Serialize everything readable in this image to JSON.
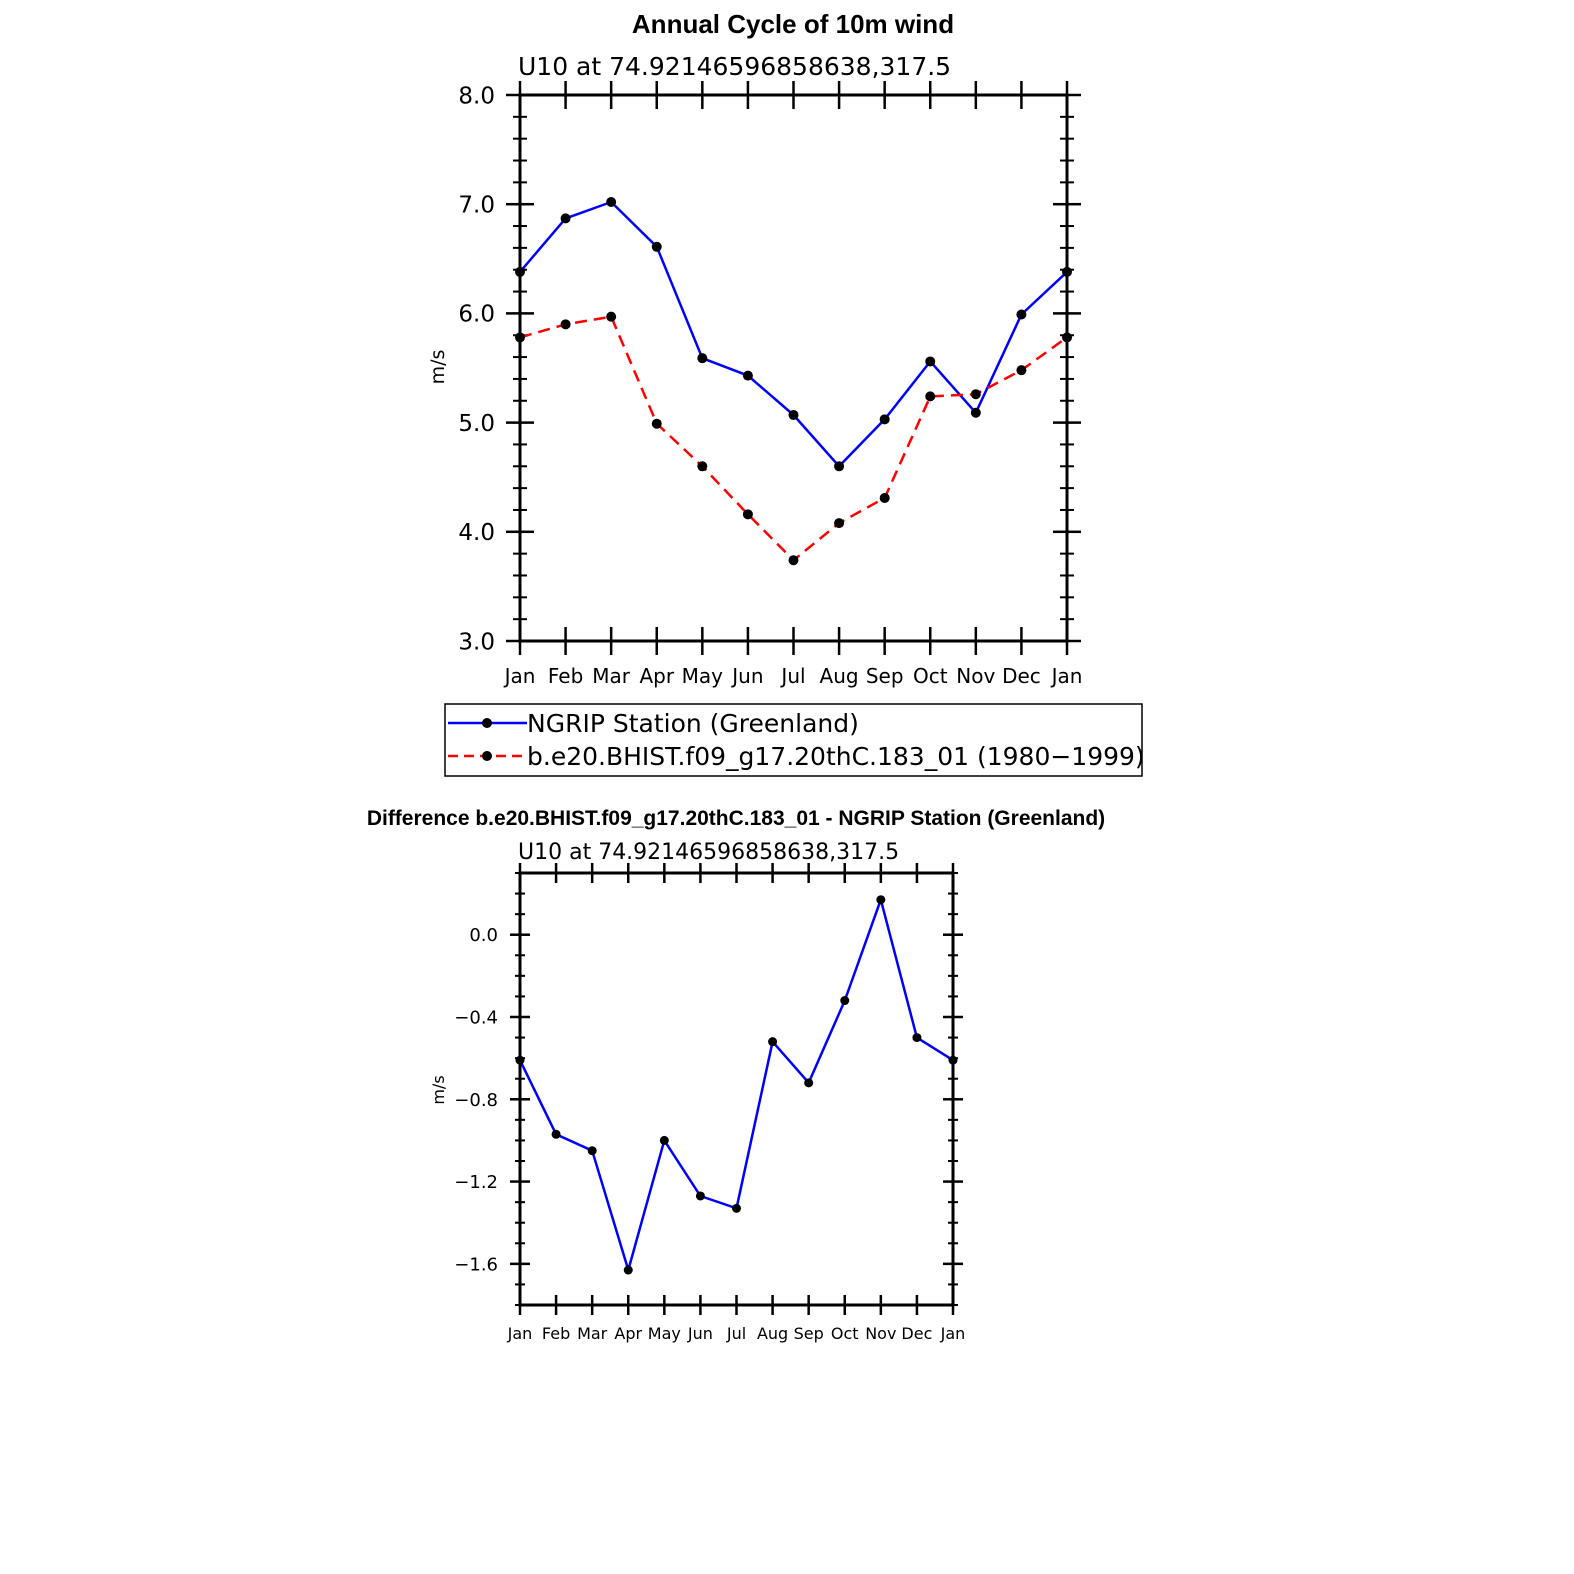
{
  "chart_data": [
    {
      "type": "line",
      "title": "Annual Cycle of 10m wind",
      "subtitle": "U10 at 74.92146596858638,317.5",
      "xlabel": "",
      "ylabel": "m/s",
      "categories": [
        "Jan",
        "Feb",
        "Mar",
        "Apr",
        "May",
        "Jun",
        "Jul",
        "Aug",
        "Sep",
        "Oct",
        "Nov",
        "Dec",
        "Jan"
      ],
      "ylim": [
        3.0,
        8.0
      ],
      "yticks": [
        "3.0",
        "4.0",
        "5.0",
        "6.0",
        "7.0",
        "8.0"
      ],
      "grid": false,
      "legend_position": "bottom",
      "series": [
        {
          "name": "NGRIP Station (Greenland)",
          "color": "#0000ff",
          "dash": "solid",
          "values": [
            6.38,
            6.87,
            7.02,
            6.61,
            5.59,
            5.43,
            5.07,
            4.6,
            5.03,
            5.56,
            5.09,
            5.99,
            6.38
          ]
        },
        {
          "name": "b.e20.BHIST.f09_g17.20thC.183_01 (1980−1999)",
          "color": "#ff0000",
          "dash": "dashed",
          "values": [
            5.78,
            5.9,
            5.97,
            4.99,
            4.6,
            4.16,
            3.74,
            4.08,
            4.31,
            5.24,
            5.26,
            5.48,
            5.78
          ]
        }
      ]
    },
    {
      "type": "line",
      "title": "Difference b.e20.BHIST.f09_g17.20thC.183_01 - NGRIP Station (Greenland)",
      "subtitle": "U10 at 74.92146596858638,317.5",
      "xlabel": "",
      "ylabel": "m/s",
      "categories": [
        "Jan",
        "Feb",
        "Mar",
        "Apr",
        "May",
        "Jun",
        "Jul",
        "Aug",
        "Sep",
        "Oct",
        "Nov",
        "Dec",
        "Jan"
      ],
      "ylim": [
        -1.8,
        0.3
      ],
      "yticks": [
        "−1.6",
        "−1.2",
        "−0.8",
        "−0.4",
        "0.0"
      ],
      "grid": false,
      "series": [
        {
          "name": "",
          "color": "#0000ff",
          "dash": "solid",
          "values": [
            -0.61,
            -0.97,
            -1.05,
            -1.63,
            -1.0,
            -1.27,
            -1.33,
            -0.52,
            -0.72,
            -0.32,
            0.17,
            -0.5,
            -0.61
          ]
        }
      ]
    }
  ]
}
